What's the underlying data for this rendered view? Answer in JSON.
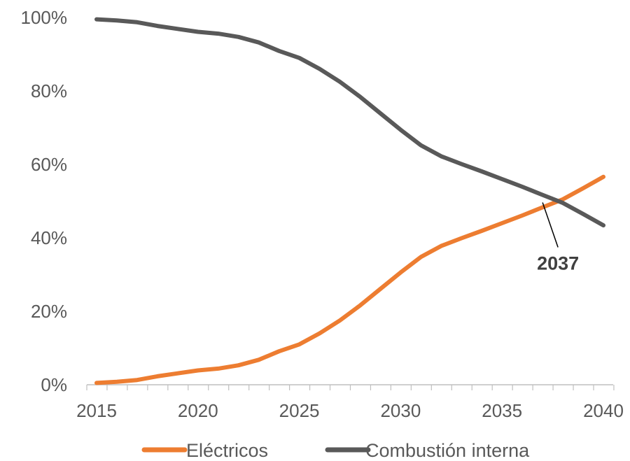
{
  "chart_data": {
    "type": "line",
    "x": [
      2015,
      2016,
      2017,
      2018,
      2019,
      2020,
      2021,
      2022,
      2023,
      2024,
      2025,
      2026,
      2027,
      2028,
      2029,
      2030,
      2031,
      2032,
      2033,
      2034,
      2035,
      2036,
      2037,
      2038,
      2039,
      2040
    ],
    "series": [
      {
        "name": "Eléctricos",
        "color": "#ED7D31",
        "values": [
          0.5,
          0.8,
          1.3,
          2.3,
          3.1,
          3.9,
          4.4,
          5.3,
          6.8,
          9.1,
          11.0,
          14.0,
          17.5,
          21.6,
          26.1,
          30.6,
          34.8,
          37.8,
          39.9,
          41.9,
          44.0,
          46.1,
          48.3,
          50.5,
          53.5,
          56.6
        ]
      },
      {
        "name": "Combustión interna",
        "color": "#595959",
        "values": [
          99.5,
          99.2,
          98.7,
          97.7,
          96.9,
          96.1,
          95.6,
          94.7,
          93.2,
          90.9,
          89.0,
          86.0,
          82.5,
          78.4,
          73.9,
          69.4,
          65.2,
          62.2,
          60.1,
          58.1,
          56.0,
          53.9,
          51.7,
          49.5,
          46.5,
          43.4
        ]
      }
    ],
    "y_ticks": [
      "0%",
      "20%",
      "40%",
      "60%",
      "80%",
      "100%"
    ],
    "x_ticks": [
      "2015",
      "2020",
      "2025",
      "2030",
      "2035",
      "2040"
    ],
    "ylim": [
      0,
      100
    ],
    "xlim": [
      2015,
      2040
    ],
    "grid": false,
    "legend_position": "bottom",
    "annotation": {
      "text": "2037",
      "x": 2037,
      "y": 50
    }
  }
}
